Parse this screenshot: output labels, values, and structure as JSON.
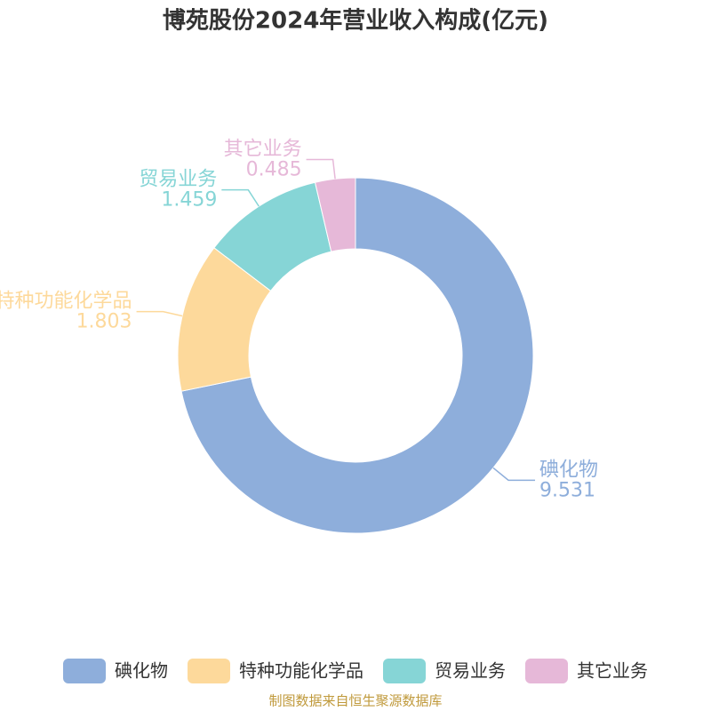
{
  "chart_data": {
    "type": "donut",
    "title": "博苑股份2024年营业收入构成(亿元)",
    "categories": [
      "碘化物",
      "特种功能化学品",
      "贸易业务",
      "其它业务"
    ],
    "values": [
      9.531,
      1.803,
      1.459,
      0.485
    ],
    "colors": [
      "#8eaedb",
      "#fdd99b",
      "#86d5d6",
      "#e6b8d8"
    ],
    "legend": "bottom",
    "source": "制图数据来自恒生聚源数据库"
  }
}
